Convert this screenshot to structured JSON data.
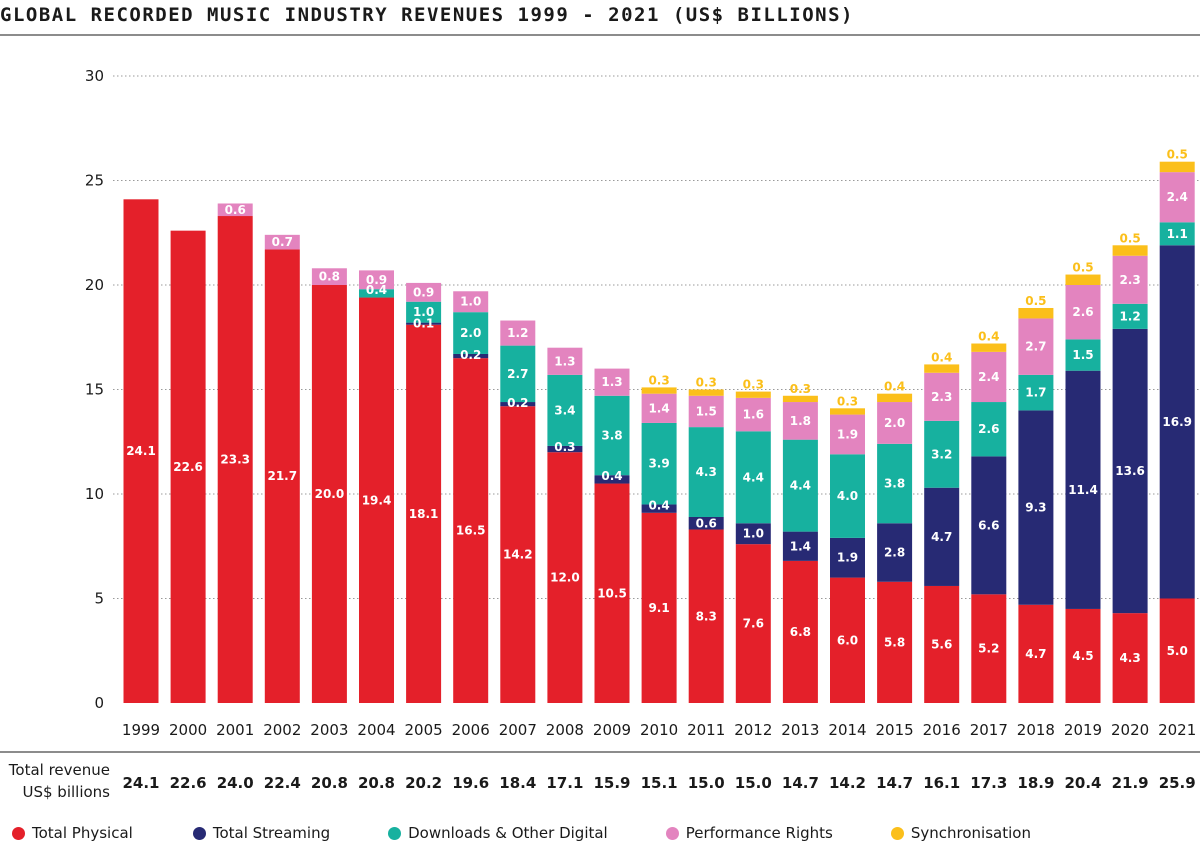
{
  "title": "GLOBAL RECORDED MUSIC INDUSTRY REVENUES 1999 - 2021 (US$ BILLIONS)",
  "colors": {
    "physical": "#e4202a",
    "streaming": "#272a74",
    "downloads": "#17b19f",
    "performance": "#e384bf",
    "sync": "#fbbf1a"
  },
  "totals_row": {
    "label_line1": "Total revenue",
    "label_line2": "US$ billions"
  },
  "chart_data": {
    "type": "bar",
    "stacked": true,
    "title": "GLOBAL RECORDED MUSIC INDUSTRY REVENUES 1999 - 2021 (US$ BILLIONS)",
    "categories": [
      "1999",
      "2000",
      "2001",
      "2002",
      "2003",
      "2004",
      "2005",
      "2006",
      "2007",
      "2008",
      "2009",
      "2010",
      "2011",
      "2012",
      "2013",
      "2014",
      "2015",
      "2016",
      "2017",
      "2018",
      "2019",
      "2020",
      "2021"
    ],
    "ylim": [
      0,
      30
    ],
    "yticks": [
      0,
      5,
      10,
      15,
      20,
      25,
      30
    ],
    "grid": "horizontal dotted",
    "legend": "bottom",
    "series": [
      {
        "name": "Total Physical",
        "key": "physical",
        "values": [
          24.1,
          22.6,
          23.3,
          21.7,
          20.0,
          19.4,
          18.1,
          16.5,
          14.2,
          12.0,
          10.5,
          9.1,
          8.3,
          7.6,
          6.8,
          6.0,
          5.8,
          5.6,
          5.2,
          4.7,
          4.5,
          4.3,
          5.0
        ]
      },
      {
        "name": "Total Streaming",
        "key": "streaming",
        "values": [
          0,
          0,
          0,
          0,
          0,
          0,
          0.1,
          0.2,
          0.2,
          0.3,
          0.4,
          0.4,
          0.6,
          1.0,
          1.4,
          1.9,
          2.8,
          4.7,
          6.6,
          9.3,
          11.4,
          13.6,
          16.9
        ]
      },
      {
        "name": "Downloads & Other Digital",
        "key": "downloads",
        "values": [
          0,
          0,
          0,
          0,
          0,
          0.4,
          1.0,
          2.0,
          2.7,
          3.4,
          3.8,
          3.9,
          4.3,
          4.4,
          4.4,
          4.0,
          3.8,
          3.2,
          2.6,
          1.7,
          1.5,
          1.2,
          1.1
        ]
      },
      {
        "name": "Performance Rights",
        "key": "performance",
        "values": [
          0,
          0,
          0.6,
          0.7,
          0.8,
          0.9,
          0.9,
          1.0,
          1.2,
          1.3,
          1.3,
          1.4,
          1.5,
          1.6,
          1.8,
          1.9,
          2.0,
          2.3,
          2.4,
          2.7,
          2.6,
          2.3,
          2.4
        ]
      },
      {
        "name": "Synchronisation",
        "key": "sync",
        "values": [
          0,
          0,
          0,
          0,
          0,
          0,
          0,
          0,
          0,
          0,
          0,
          0.3,
          0.3,
          0.3,
          0.3,
          0.3,
          0.4,
          0.4,
          0.4,
          0.5,
          0.5,
          0.5,
          0.5
        ]
      }
    ],
    "totals": [
      "24.1",
      "22.6",
      "24.0",
      "22.4",
      "20.8",
      "20.8",
      "20.2",
      "19.6",
      "18.4",
      "17.1",
      "15.9",
      "15.1",
      "15.0",
      "15.0",
      "14.7",
      "14.2",
      "14.7",
      "16.1",
      "17.3",
      "18.9",
      "20.4",
      "21.9",
      "25.9"
    ]
  }
}
